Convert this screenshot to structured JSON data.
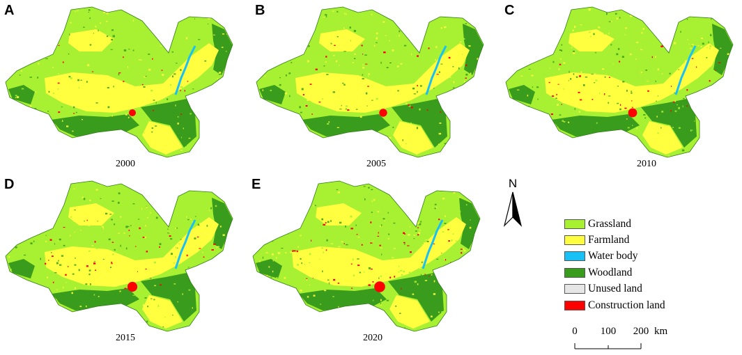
{
  "panels": [
    {
      "letter": "A",
      "year": "2000"
    },
    {
      "letter": "B",
      "year": "2005"
    },
    {
      "letter": "C",
      "year": "2010"
    },
    {
      "letter": "D",
      "year": "2015"
    },
    {
      "letter": "E",
      "year": "2020"
    }
  ],
  "north_arrow": {
    "label": "N"
  },
  "legend": {
    "items": [
      {
        "label": "Grassland",
        "color": "#a8f032"
      },
      {
        "label": "Farmland",
        "color": "#ffff40"
      },
      {
        "label": "Water body",
        "color": "#19c0f5"
      },
      {
        "label": "Woodland",
        "color": "#3a9c1c"
      },
      {
        "label": "Unused land",
        "color": "#e6e6e6"
      },
      {
        "label": "Construction land",
        "color": "#ff0000"
      }
    ]
  },
  "scale_bar": {
    "ticks": [
      "0",
      "100",
      "200"
    ],
    "unit": "km"
  }
}
